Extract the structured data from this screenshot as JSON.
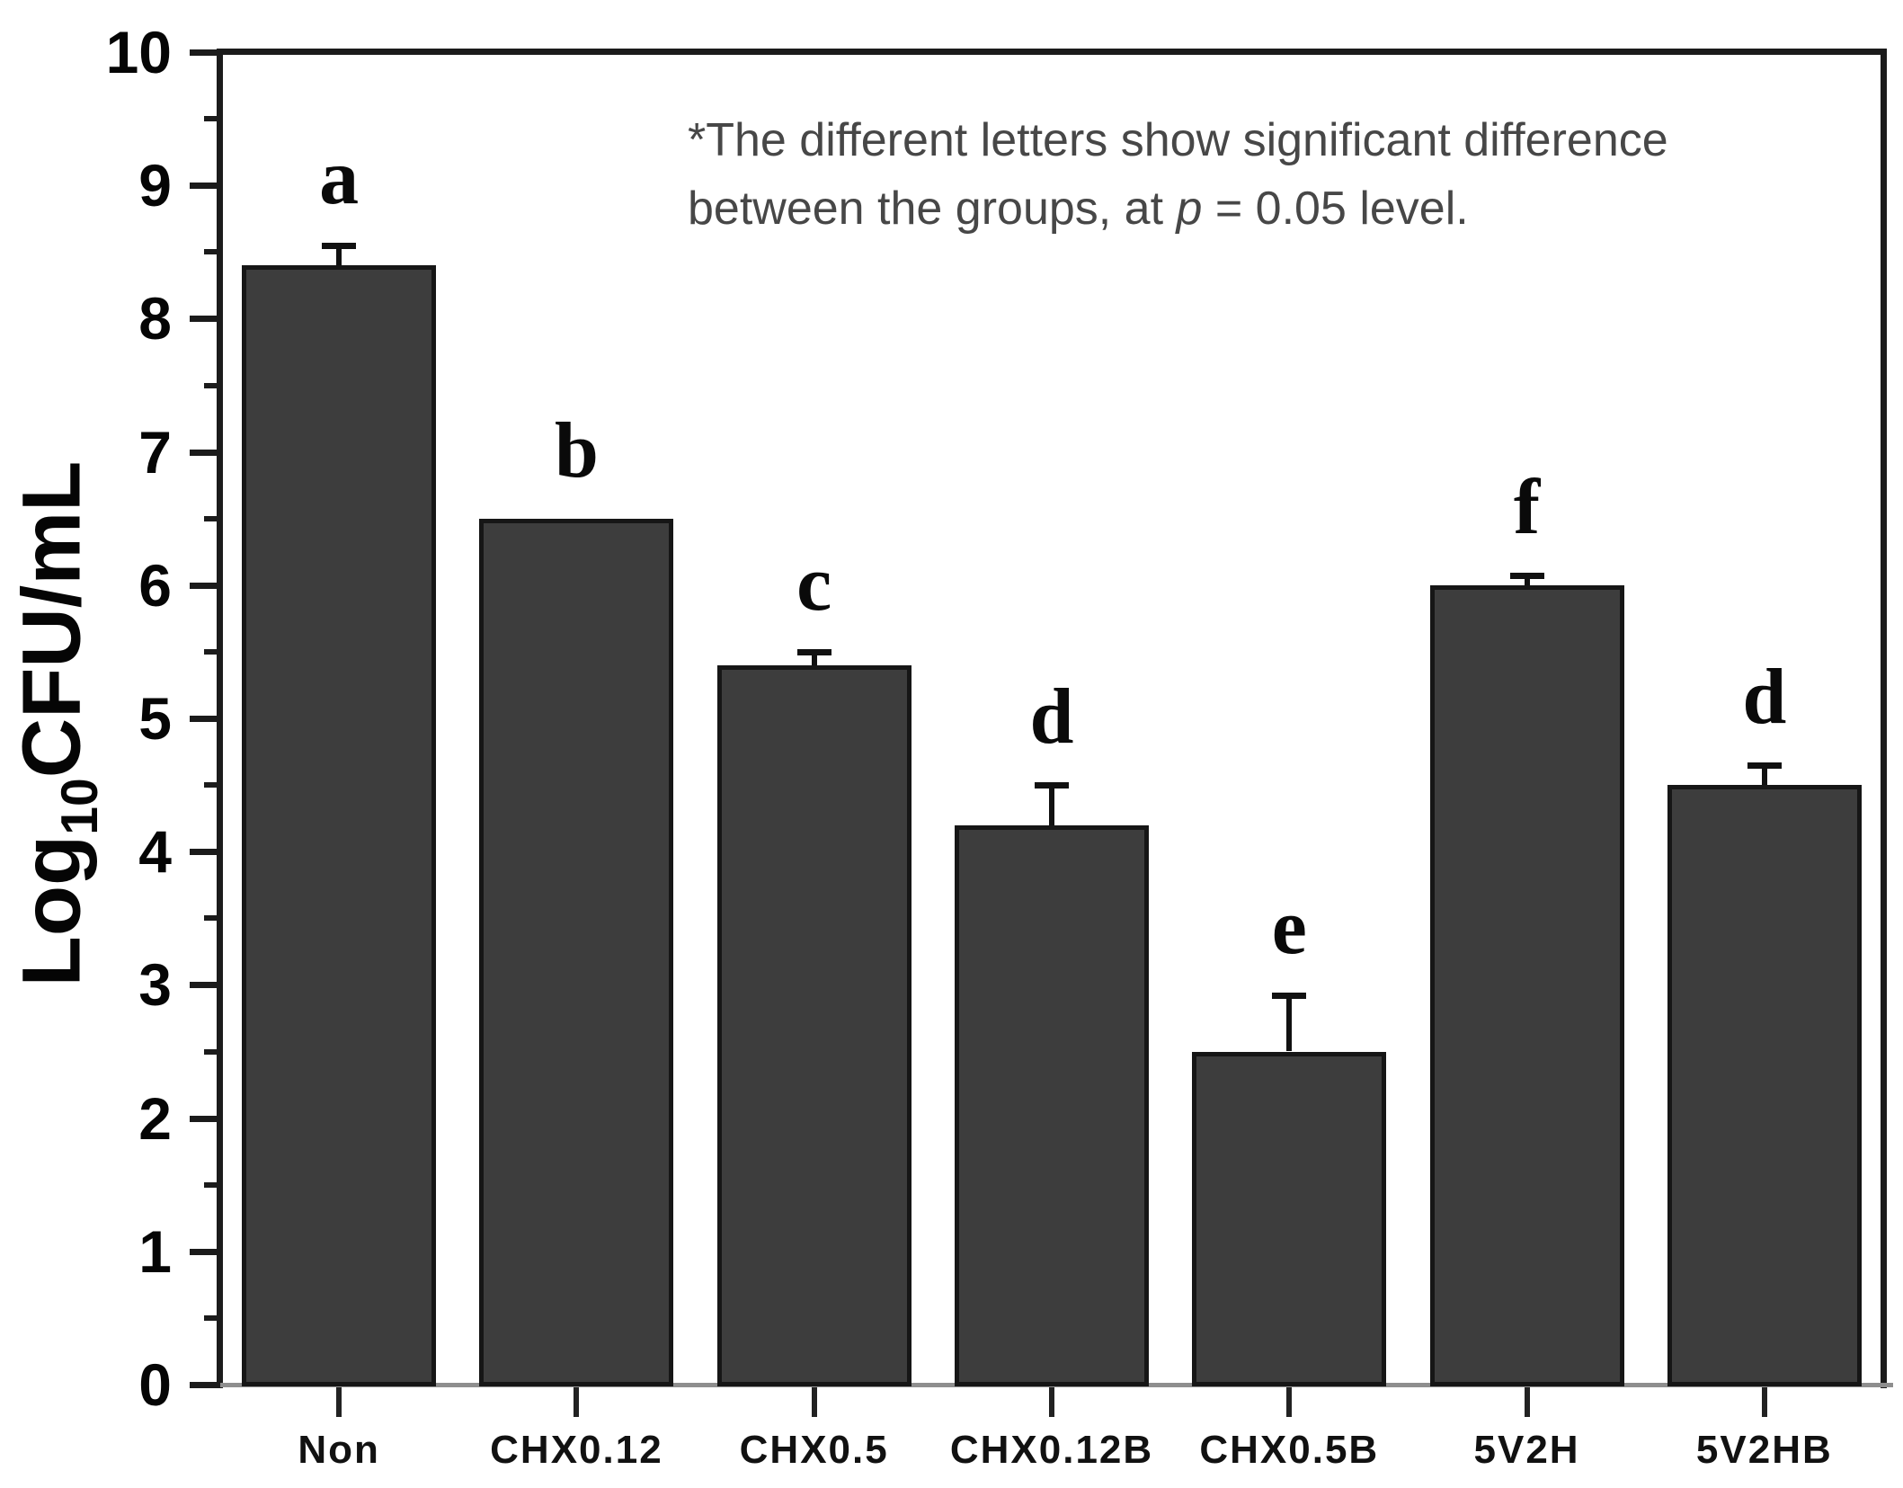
{
  "chart_data": {
    "type": "bar",
    "title": "",
    "xlabel": "",
    "ylabel": {
      "prefix": "Log",
      "sub": "10",
      "suffix": "CFU/mL"
    },
    "ylim": [
      0,
      10
    ],
    "y_major_step": 1,
    "y_minor_step": 0.5,
    "grid": false,
    "legend": "none",
    "categories": [
      "Non",
      "CHX0.12",
      "CHX0.5",
      "CHX0.12B",
      "CHX0.5B",
      "5V2H",
      "5V2HB"
    ],
    "values": [
      8.4,
      6.5,
      5.4,
      4.2,
      2.5,
      6.0,
      4.5
    ],
    "errors": [
      0.15,
      0,
      0.1,
      0.3,
      0.42,
      0.07,
      0.15
    ],
    "letters": [
      "a",
      "b",
      "c",
      "d",
      "e",
      "f",
      "d"
    ],
    "bar_color": "#3d3d3d",
    "bar_border_color": "#161616",
    "axis_color": "#1b1b1b",
    "baseline_color": "#8e8e8e",
    "annotation": {
      "line1": "*The different letters show significant difference",
      "line2_pre": "between the groups, at ",
      "line2_italic": "p",
      "line2_post": " = 0.05 level."
    }
  }
}
